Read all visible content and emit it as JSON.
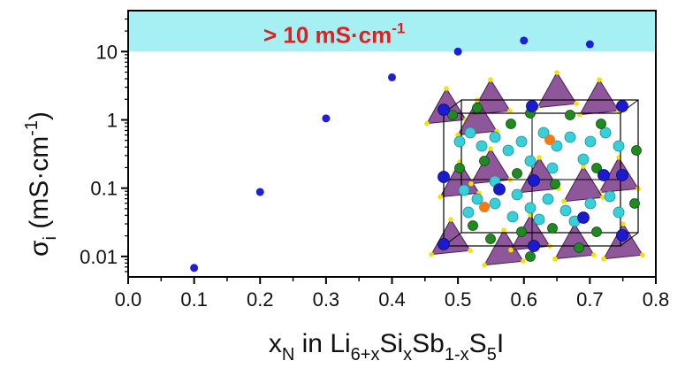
{
  "chart_data": {
    "type": "scatter",
    "title": "",
    "xlabel": {
      "main": "x",
      "main_sub": "N",
      "mid": " in Li",
      "li_sub": "6+x",
      "si": "Si",
      "si_sub": "x",
      "sb": "Sb",
      "sb_sub": "1-x",
      "s": "S",
      "s_sub": "5",
      "end": "I"
    },
    "ylabel": {
      "symbol": "σ",
      "symbol_sub": "i",
      "units": " (mS·cm",
      "units_sup": "-1",
      "close": ")"
    },
    "xlim": [
      0.0,
      0.8
    ],
    "ylim_log10": [
      -2.3,
      1.6
    ],
    "y_scale": "log",
    "x_ticks": [
      "0.0",
      "0.1",
      "0.2",
      "0.3",
      "0.4",
      "0.5",
      "0.6",
      "0.7",
      "0.8"
    ],
    "x_tick_values": [
      0.0,
      0.1,
      0.2,
      0.3,
      0.4,
      0.5,
      0.6,
      0.7,
      0.8
    ],
    "y_ticks": [
      "0.01",
      "0.1",
      "1",
      "10"
    ],
    "y_tick_values": [
      0.01,
      0.1,
      1,
      10
    ],
    "series": [
      {
        "name": "Li6+xSixSb1-xS5I",
        "color": "#1f1fd6",
        "x": [
          0.1,
          0.2,
          0.3,
          0.4,
          0.5,
          0.6,
          0.7
        ],
        "y": [
          0.0068,
          0.088,
          1.05,
          4.2,
          10.0,
          14.5,
          12.8
        ]
      }
    ],
    "highlight_band": {
      "from": 10,
      "to_axis_top": true,
      "color": "#a6f0f4",
      "label": "> 10 mS·cm",
      "label_sup": "-1",
      "label_color": "#e02020"
    }
  },
  "inset": {
    "description_name": "crystal-structure-inset",
    "atom_colors": {
      "tetrahedra": "#7a3a88",
      "sulfur": "#f2e400",
      "iodine": "#1a1ad0",
      "lithium": "#37d0d8",
      "green_site": "#1f8a1f",
      "orange_site": "#f07a1a"
    }
  }
}
